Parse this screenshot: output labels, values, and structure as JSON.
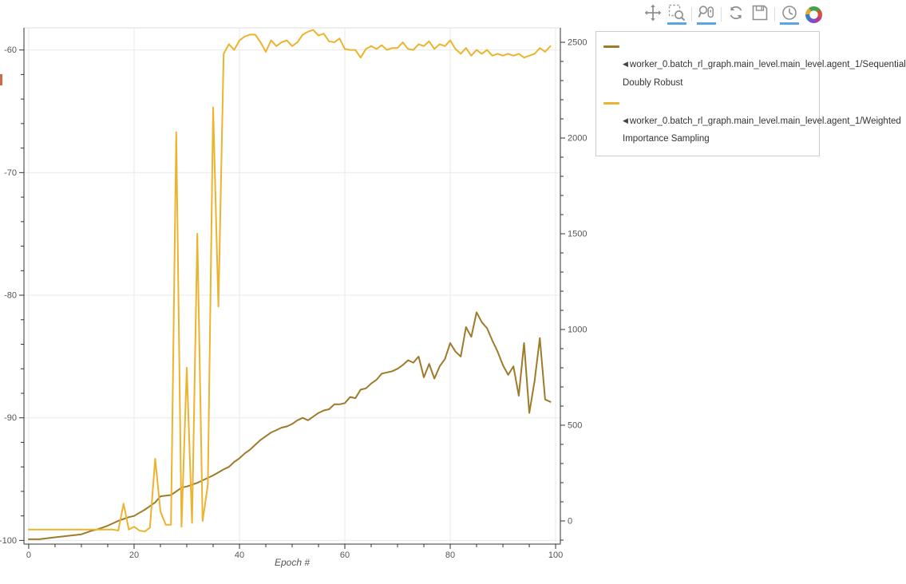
{
  "toolbar": {
    "active_color": "#58a6e6",
    "tools": [
      {
        "name": "pan",
        "active": false
      },
      {
        "name": "box-zoom",
        "active": true
      },
      {
        "name": "wheel-zoom",
        "active": true
      },
      {
        "name": "reset",
        "active": false
      },
      {
        "name": "save",
        "active": false
      },
      {
        "name": "hover",
        "active": true
      }
    ]
  },
  "legend": {
    "entries": [
      {
        "marker": "◀",
        "label": "worker_0.batch_rl_graph.main_level.main_level.agent_1/Sequential Doubly Robust",
        "color": "#9e7b2b"
      },
      {
        "marker": "◀",
        "label": "worker_0.batch_rl_graph.main_level.main_level.agent_1/Weighted Importance Sampling",
        "color": "#ecb42e"
      }
    ]
  },
  "chart_data": {
    "type": "line",
    "title": "",
    "xlabel": "Epoch #",
    "grid": true,
    "legend_position": "right-outside",
    "x_range": [
      -0.9,
      100.9
    ],
    "x_ticks": [
      0,
      20,
      40,
      60,
      80,
      100
    ],
    "x_minor_step": 5,
    "left_axis": {
      "range": [
        -100.3,
        -58.2
      ],
      "ticks": [
        -60,
        -70,
        -80,
        -90,
        -100
      ],
      "minor_step": 2
    },
    "right_axis": {
      "range": [
        -121,
        2575
      ],
      "ticks": [
        0,
        500,
        1000,
        1500,
        2000,
        2500
      ],
      "minor_step": 100
    },
    "series": [
      {
        "name": "worker_0.batch_rl_graph.main_level.main_level.agent_1/Sequential Doubly Robust",
        "axis": "left",
        "color": "#9e7b2b",
        "x_is_index": true,
        "values": [
          -99.9,
          -99.9,
          -99.9,
          -99.85,
          -99.8,
          -99.75,
          -99.7,
          -99.65,
          -99.6,
          -99.55,
          -99.5,
          -99.35,
          -99.2,
          -99.1,
          -98.95,
          -98.8,
          -98.6,
          -98.4,
          -98.25,
          -98.1,
          -98.0,
          -97.75,
          -97.5,
          -97.2,
          -96.9,
          -96.4,
          -96.35,
          -96.3,
          -96.0,
          -95.7,
          -95.6,
          -95.45,
          -95.3,
          -95.1,
          -94.9,
          -94.7,
          -94.45,
          -94.2,
          -94.0,
          -93.6,
          -93.3,
          -92.9,
          -92.6,
          -92.2,
          -91.8,
          -91.5,
          -91.2,
          -91.0,
          -90.8,
          -90.7,
          -90.5,
          -90.2,
          -90.0,
          -90.2,
          -89.9,
          -89.6,
          -89.4,
          -89.3,
          -88.9,
          -88.9,
          -88.8,
          -88.3,
          -88.4,
          -87.7,
          -87.6,
          -87.2,
          -86.9,
          -86.4,
          -86.3,
          -86.2,
          -86.0,
          -85.7,
          -85.3,
          -85.5,
          -85.0,
          -86.7,
          -85.6,
          -86.8,
          -85.8,
          -85.2,
          -83.9,
          -84.6,
          -85.0,
          -82.6,
          -83.4,
          -81.4,
          -82.2,
          -82.7,
          -83.7,
          -84.6,
          -85.7,
          -86.5,
          -85.8,
          -88.2,
          -83.9,
          -89.6,
          -87.0,
          -83.5,
          -88.5,
          -88.7
        ]
      },
      {
        "name": "worker_0.batch_rl_graph.main_level.main_level.agent_1/Weighted Importance Sampling",
        "axis": "right",
        "color": "#ecb42e",
        "x_is_index": true,
        "values": [
          -45,
          -45,
          -45,
          -45,
          -45,
          -45,
          -45,
          -45,
          -45,
          -45,
          -45,
          -45,
          -45,
          -45,
          -45,
          -45,
          -45,
          -50,
          90,
          -45,
          -30,
          -50,
          -55,
          -35,
          325,
          50,
          -20,
          -20,
          2030,
          -30,
          800,
          -10,
          1500,
          0,
          190,
          2160,
          1120,
          2440,
          2490,
          2460,
          2510,
          2530,
          2540,
          2540,
          2500,
          2450,
          2510,
          2480,
          2500,
          2510,
          2480,
          2500,
          2540,
          2555,
          2565,
          2535,
          2545,
          2505,
          2500,
          2520,
          2465,
          2460,
          2460,
          2420,
          2465,
          2480,
          2465,
          2485,
          2460,
          2470,
          2470,
          2500,
          2465,
          2460,
          2490,
          2480,
          2505,
          2465,
          2490,
          2480,
          2510,
          2465,
          2440,
          2470,
          2430,
          2460,
          2440,
          2460,
          2430,
          2440,
          2430,
          2440,
          2430,
          2440,
          2420,
          2430,
          2440,
          2470,
          2450,
          2480
        ]
      }
    ]
  }
}
